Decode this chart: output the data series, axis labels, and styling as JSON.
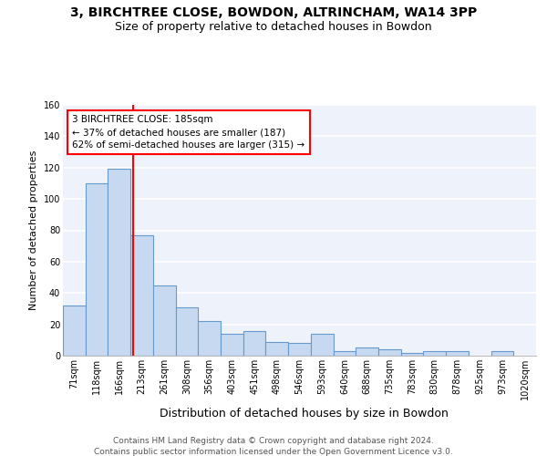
{
  "title": "3, BIRCHTREE CLOSE, BOWDON, ALTRINCHAM, WA14 3PP",
  "subtitle": "Size of property relative to detached houses in Bowdon",
  "xlabel": "Distribution of detached houses by size in Bowdon",
  "ylabel": "Number of detached properties",
  "bar_labels": [
    "71sqm",
    "118sqm",
    "166sqm",
    "213sqm",
    "261sqm",
    "308sqm",
    "356sqm",
    "403sqm",
    "451sqm",
    "498sqm",
    "546sqm",
    "593sqm",
    "640sqm",
    "688sqm",
    "735sqm",
    "783sqm",
    "830sqm",
    "878sqm",
    "925sqm",
    "973sqm",
    "1020sqm"
  ],
  "bar_values": [
    32,
    110,
    119,
    77,
    45,
    31,
    22,
    14,
    16,
    9,
    8,
    14,
    3,
    5,
    4,
    2,
    3,
    3,
    0,
    3,
    0
  ],
  "bar_color": "#c6d9f0",
  "bar_edgecolor": "#6699cc",
  "bar_linewidth": 0.8,
  "red_line_x": 2.62,
  "annotation_text": "3 BIRCHTREE CLOSE: 185sqm\n← 37% of detached houses are smaller (187)\n62% of semi-detached houses are larger (315) →",
  "annotation_box_color": "white",
  "annotation_box_edgecolor": "red",
  "red_line_color": "red",
  "ylim": [
    0,
    160
  ],
  "yticks": [
    0,
    20,
    40,
    60,
    80,
    100,
    120,
    140,
    160
  ],
  "background_color": "#eef2fa",
  "grid_color": "#ffffff",
  "footer_line1": "Contains HM Land Registry data © Crown copyright and database right 2024.",
  "footer_line2": "Contains public sector information licensed under the Open Government Licence v3.0.",
  "title_fontsize": 10,
  "subtitle_fontsize": 9,
  "xlabel_fontsize": 9,
  "ylabel_fontsize": 8,
  "tick_fontsize": 7,
  "footer_fontsize": 6.5,
  "annot_fontsize": 7.5
}
